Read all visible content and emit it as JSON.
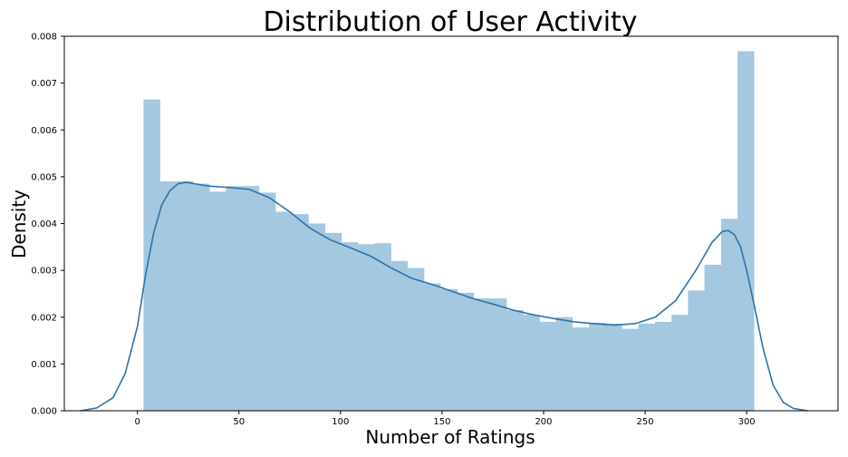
{
  "chart_data": {
    "type": "bar",
    "title": "Distribution of User Activity",
    "xlabel": "Number of Ratings",
    "ylabel": "Density",
    "xlim": [
      -36,
      345
    ],
    "ylim": [
      0,
      0.008
    ],
    "grid": false,
    "xticks": [
      0,
      50,
      100,
      150,
      200,
      250,
      300
    ],
    "yticks": [
      0.0,
      0.001,
      0.002,
      0.003,
      0.004,
      0.005,
      0.006,
      0.007,
      0.008
    ],
    "ytick_labels": [
      "0.000",
      "0.001",
      "0.002",
      "0.003",
      "0.004",
      "0.005",
      "0.006",
      "0.007",
      "0.008"
    ],
    "bar_color": "#a4c8e0",
    "line_color": "#2f73a8",
    "histogram": {
      "bin_edges": [
        3,
        11.1,
        19.2,
        27.4,
        35.5,
        43.6,
        51.7,
        59.9,
        68.0,
        76.1,
        84.2,
        92.4,
        100.5,
        108.6,
        116.7,
        124.9,
        133.0,
        141.1,
        149.2,
        157.4,
        165.5,
        173.6,
        181.7,
        189.9,
        198.0,
        206.1,
        214.2,
        222.4,
        230.5,
        238.6,
        246.7,
        254.9,
        263.0,
        271.1,
        279.2,
        287.4,
        295.5
      ],
      "densities": [
        0.00665,
        0.0049,
        0.0049,
        0.00485,
        0.00468,
        0.0048,
        0.0048,
        0.00466,
        0.00425,
        0.0042,
        0.004,
        0.0038,
        0.0036,
        0.00356,
        0.00358,
        0.0032,
        0.00305,
        0.00272,
        0.0026,
        0.00252,
        0.0024,
        0.0024,
        0.00215,
        0.00205,
        0.0019,
        0.002,
        0.00178,
        0.00188,
        0.00186,
        0.00175,
        0.00186,
        0.0019,
        0.00205,
        0.00257,
        0.00312,
        0.0041,
        0.00768
      ]
    },
    "kde": {
      "x": [
        -28,
        -20,
        -12,
        -6,
        0,
        4,
        8,
        12,
        16,
        20,
        24,
        28,
        35,
        45,
        55,
        65,
        75,
        85,
        95,
        105,
        115,
        125,
        135,
        145,
        155,
        165,
        175,
        185,
        195,
        205,
        215,
        225,
        235,
        245,
        255,
        265,
        275,
        283,
        288,
        291,
        294,
        297,
        300,
        304,
        308,
        313,
        318,
        323,
        330
      ],
      "y": [
        0.0,
        6e-05,
        0.00028,
        0.0008,
        0.0018,
        0.0029,
        0.0038,
        0.0044,
        0.0047,
        0.00485,
        0.00488,
        0.00485,
        0.0048,
        0.00477,
        0.00473,
        0.00455,
        0.00425,
        0.0039,
        0.00365,
        0.00348,
        0.0033,
        0.00305,
        0.00283,
        0.0027,
        0.00255,
        0.0024,
        0.00228,
        0.00215,
        0.00205,
        0.00197,
        0.0019,
        0.00186,
        0.00183,
        0.00186,
        0.002,
        0.00235,
        0.003,
        0.0036,
        0.00383,
        0.00385,
        0.00376,
        0.0035,
        0.003,
        0.0022,
        0.00135,
        0.00055,
        0.00018,
        5e-05,
        0.0
      ]
    }
  }
}
